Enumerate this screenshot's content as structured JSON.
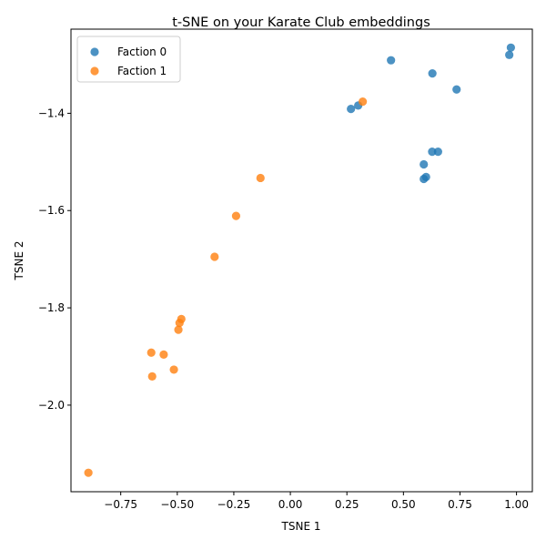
{
  "chart_data": {
    "type": "scatter",
    "title": "t-SNE on your Karate Club embeddings",
    "xlabel": "TSNE 1",
    "ylabel": "TSNE 2",
    "xlim": [
      -0.97,
      1.07
    ],
    "ylim": [
      -2.178,
      -1.227
    ],
    "xticks": [
      -0.75,
      -0.5,
      -0.25,
      0.0,
      0.25,
      0.5,
      0.75,
      1.0
    ],
    "xtick_labels": [
      "−0.75",
      "−0.50",
      "−0.25",
      "0.00",
      "0.25",
      "0.50",
      "0.75",
      "1.00"
    ],
    "yticks": [
      -2.0,
      -1.8,
      -1.6,
      -1.4
    ],
    "ytick_labels": [
      "−2.0",
      "−1.8",
      "−1.6",
      "−1.4"
    ],
    "grid": false,
    "legend_position": "top-left",
    "series": [
      {
        "name": "Faction 0",
        "color": "#1f77b4",
        "points": [
          {
            "x": 0.445,
            "y": -1.291
          },
          {
            "x": 0.628,
            "y": -1.318
          },
          {
            "x": 0.735,
            "y": -1.351
          },
          {
            "x": 0.968,
            "y": -1.28
          },
          {
            "x": 0.975,
            "y": -1.265
          },
          {
            "x": 0.268,
            "y": -1.391
          },
          {
            "x": 0.3,
            "y": -1.384
          },
          {
            "x": 0.627,
            "y": -1.479
          },
          {
            "x": 0.653,
            "y": -1.479
          },
          {
            "x": 0.59,
            "y": -1.505
          },
          {
            "x": 0.6,
            "y": -1.531
          },
          {
            "x": 0.59,
            "y": -1.535
          }
        ]
      },
      {
        "name": "Faction 1",
        "color": "#ff7f0e",
        "points": [
          {
            "x": 0.32,
            "y": -1.376
          },
          {
            "x": -0.132,
            "y": -1.533
          },
          {
            "x": -0.24,
            "y": -1.611
          },
          {
            "x": -0.335,
            "y": -1.695
          },
          {
            "x": -0.482,
            "y": -1.823
          },
          {
            "x": -0.49,
            "y": -1.831
          },
          {
            "x": -0.495,
            "y": -1.845
          },
          {
            "x": -0.615,
            "y": -1.892
          },
          {
            "x": -0.56,
            "y": -1.896
          },
          {
            "x": -0.515,
            "y": -1.927
          },
          {
            "x": -0.611,
            "y": -1.941
          },
          {
            "x": -0.893,
            "y": -2.139
          }
        ]
      }
    ]
  }
}
